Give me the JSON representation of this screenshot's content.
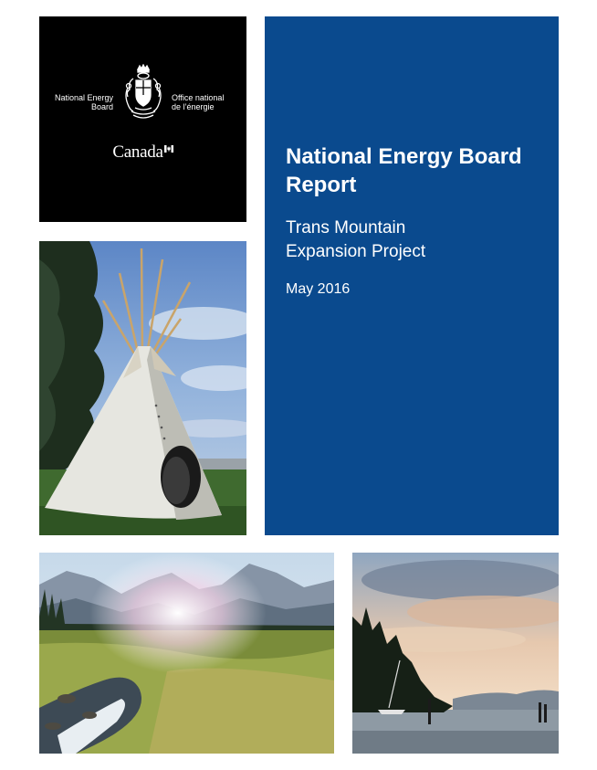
{
  "logo": {
    "agency_en_line1": "National Energy",
    "agency_en_line2": "Board",
    "agency_fr_line1": "Office national",
    "agency_fr_line2": "de l’énergie",
    "wordmark": "Canada",
    "coat_icon": "coat-of-arms-icon",
    "flag_icon": "canada-flag-icon"
  },
  "report": {
    "title_line1": "National Energy Board",
    "title_line2": "Report",
    "subtitle_line1": "Trans Mountain",
    "subtitle_line2": "Expansion Project",
    "date": "May 2016"
  },
  "colors": {
    "title_panel": "#0a4a8e",
    "logo_panel": "#000000"
  }
}
